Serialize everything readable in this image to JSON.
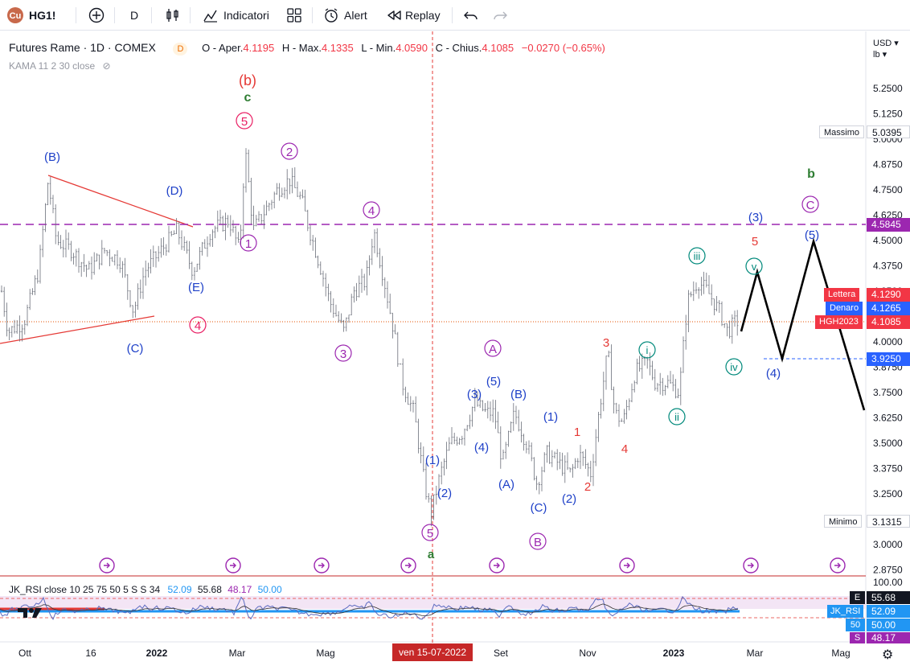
{
  "toolbar": {
    "symbol": "HG1!",
    "interval": "D",
    "indicators_label": "Indicatori",
    "alert_label": "Alert",
    "replay_label": "Replay"
  },
  "legend": {
    "title": "Futures Rame · 1D · COMEX",
    "badge": "D",
    "open_label": "O - Aper.",
    "open": "4.1195",
    "high_label": "H - Max.",
    "high": "4.1335",
    "low_label": "L - Min.",
    "low": "4.0590",
    "close_label": "C - Chius.",
    "close": "4.1085",
    "change": "−0.0270 (−0.65%)",
    "kama": "KAMA 11 2 30 close"
  },
  "price_axis": {
    "currency": "USD ▾",
    "unit": "lb ▾",
    "ticks": [
      "5.2500",
      "5.1250",
      "5.0000",
      "4.8750",
      "4.7500",
      "4.6250",
      "4.5000",
      "4.3750",
      "4.2500",
      "4.1250",
      "4.0000",
      "3.8750",
      "3.7500",
      "3.6250",
      "3.5000",
      "3.3750",
      "3.2500",
      "3.1250",
      "3.0000",
      "2.8750"
    ],
    "massimo_label": "Massimo",
    "massimo": "5.0395",
    "minimo_label": "Minimo",
    "minimo": "3.1315",
    "tag_4_5845": "4.5845",
    "lettera_label": "Lettera",
    "lettera": "4.1290",
    "denaro_label": "Denaro",
    "denaro": "4.1265",
    "hgh_label": "HGH2023",
    "hgh": "4.1085",
    "tag_3_925": "3.9250"
  },
  "time_axis": {
    "labels": [
      "Ott",
      "16",
      "2022",
      "Mar",
      "Mag",
      "Set",
      "Nov",
      "2023",
      "Mar",
      "Mag"
    ],
    "crosshair_date": "ven 15-07-2022"
  },
  "rsi": {
    "legend_name": "JK_RSI close 10 25 75 50 5 S S 34",
    "v1": "52.09",
    "v2": "55.68",
    "v3": "48.17",
    "v4": "50.00",
    "scale_top": "100.00",
    "tag_e_letter": "E",
    "tag_e": "55.68",
    "tag_main_label": "JK_RSI",
    "tag_main": "52.09",
    "tag_50_letter": "50",
    "tag_50": "50.00",
    "tag_s_letter": "S",
    "tag_s": "48.17"
  },
  "wave_labels": {
    "B_paren": "(B)",
    "D_paren": "(D)",
    "E_paren": "(E)",
    "C_paren": "(C)",
    "b_red": "(b)",
    "c_green": "c",
    "five_circ": "5",
    "two_circ": "2",
    "four_circ": "4",
    "one_circ": "1",
    "four_circ_red": "4",
    "three_circ": "3",
    "five_circ_low": "5",
    "a_green": "a",
    "w1": "(1)",
    "w2": "(2)",
    "w3": "(3)",
    "w4": "(4)",
    "w5": "(5)",
    "A_circ": "A",
    "A_paren": "(A)",
    "B_paren2": "(B)",
    "B_circ": "B",
    "C_paren2": "(C)",
    "one_blue": "(1)",
    "two_blue": "(2)",
    "r1": "1",
    "r2": "2",
    "r3": "3",
    "r4": "4",
    "r5": "5",
    "i": "i",
    "ii": "ii",
    "iii": "iii",
    "iv": "iv",
    "v": "v",
    "p3": "(3)",
    "p4": "(4)",
    "p5": "(5)",
    "C_circ2": "C",
    "b_green": "b"
  }
}
